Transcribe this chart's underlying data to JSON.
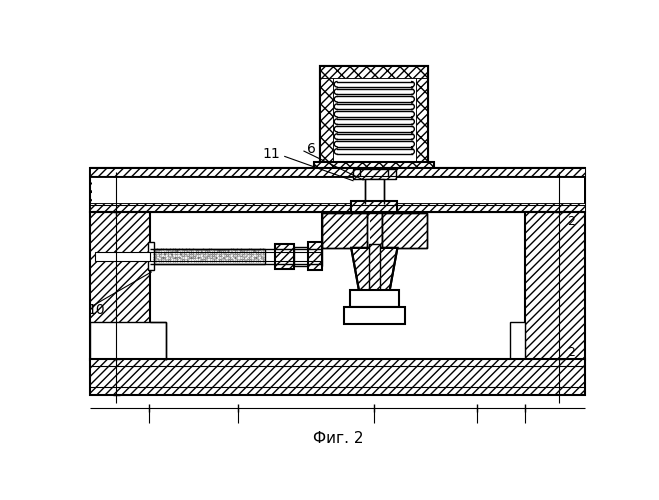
{
  "title": "Фиг. 2",
  "label_11": "11",
  "label_6": "6",
  "label_10": "10",
  "label_2a": "2",
  "label_2b": "2",
  "bg_color": "#ffffff",
  "line_color": "#000000",
  "figsize": [
    6.59,
    5.0
  ],
  "dpi": 100
}
